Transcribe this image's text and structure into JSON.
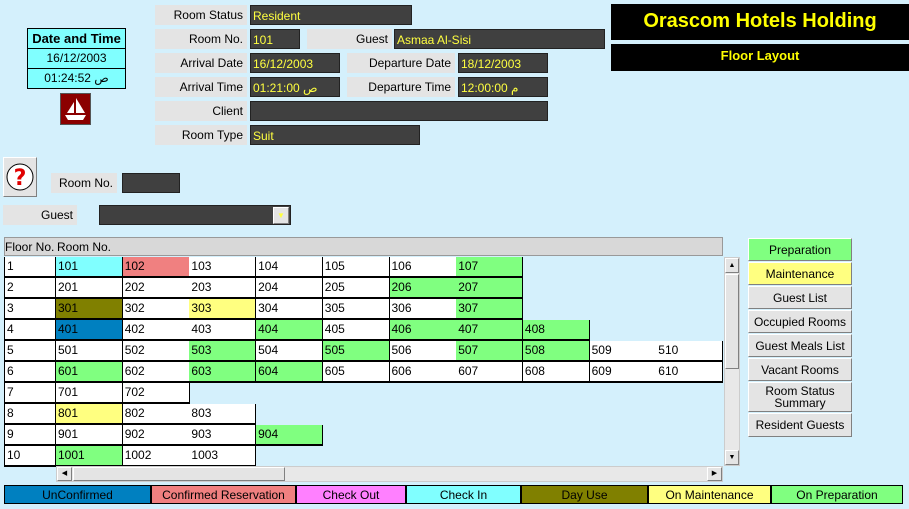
{
  "title": "Orascom Hotels Holding",
  "subtitle": "Floor Layout",
  "datetime": {
    "header": "Date and Time",
    "date": "16/12/2003",
    "time": "01:24:52 ص"
  },
  "details": {
    "room_status_label": "Room Status",
    "room_status": "Resident",
    "room_no_label": "Room No.",
    "room_no": "101",
    "guest_label": "Guest",
    "guest": "Asmaa Al-Sisi",
    "arrival_date_label": "Arrival Date",
    "arrival_date": "16/12/2003",
    "departure_date_label": "Departure Date",
    "departure_date": "18/12/2003",
    "arrival_time_label": "Arrival Time",
    "arrival_time": "01:21:00 ص",
    "departure_time_label": "Departure Time",
    "departure_time": "12:00:00 م",
    "client_label": "Client",
    "client": "",
    "room_type_label": "Room Type",
    "room_type": "Suit"
  },
  "search": {
    "room_no_label": "Room No.",
    "room_no": "",
    "guest_label": "Guest",
    "guest": ""
  },
  "grid": {
    "floor_header": "Floor No.",
    "room_header": "Room No.",
    "rows": [
      {
        "floor": "1",
        "rooms": [
          [
            "101",
            "checkin"
          ],
          [
            "102",
            "confirmed"
          ],
          [
            "103",
            ""
          ],
          [
            "104",
            ""
          ],
          [
            "105",
            ""
          ],
          [
            "106",
            ""
          ],
          [
            "107",
            "prep"
          ]
        ]
      },
      {
        "floor": "2",
        "rooms": [
          [
            "201",
            ""
          ],
          [
            "202",
            ""
          ],
          [
            "203",
            ""
          ],
          [
            "204",
            ""
          ],
          [
            "205",
            ""
          ],
          [
            "206",
            "prep"
          ],
          [
            "207",
            "prep"
          ]
        ]
      },
      {
        "floor": "3",
        "rooms": [
          [
            "301",
            "dayuse"
          ],
          [
            "302",
            ""
          ],
          [
            "303",
            "maint"
          ],
          [
            "304",
            ""
          ],
          [
            "305",
            ""
          ],
          [
            "306",
            ""
          ],
          [
            "307",
            "prep"
          ]
        ]
      },
      {
        "floor": "4",
        "rooms": [
          [
            "401",
            "unconfirmed"
          ],
          [
            "402",
            ""
          ],
          [
            "403",
            ""
          ],
          [
            "404",
            "prep"
          ],
          [
            "405",
            ""
          ],
          [
            "406",
            "prep"
          ],
          [
            "407",
            "prep"
          ],
          [
            "408",
            "prep"
          ]
        ]
      },
      {
        "floor": "5",
        "rooms": [
          [
            "501",
            ""
          ],
          [
            "502",
            ""
          ],
          [
            "503",
            "prep"
          ],
          [
            "504",
            ""
          ],
          [
            "505",
            "prep"
          ],
          [
            "506",
            ""
          ],
          [
            "507",
            "prep"
          ],
          [
            "508",
            "prep"
          ],
          [
            "509",
            ""
          ],
          [
            "510",
            ""
          ]
        ]
      },
      {
        "floor": "6",
        "rooms": [
          [
            "601",
            "prep"
          ],
          [
            "602",
            ""
          ],
          [
            "603",
            "prep"
          ],
          [
            "604",
            "prep"
          ],
          [
            "605",
            ""
          ],
          [
            "606",
            ""
          ],
          [
            "607",
            ""
          ],
          [
            "608",
            ""
          ],
          [
            "609",
            ""
          ],
          [
            "610",
            ""
          ]
        ]
      },
      {
        "floor": "7",
        "rooms": [
          [
            "701",
            ""
          ],
          [
            "702",
            ""
          ]
        ]
      },
      {
        "floor": "8",
        "rooms": [
          [
            "801",
            "maint"
          ],
          [
            "802",
            ""
          ],
          [
            "803",
            ""
          ]
        ]
      },
      {
        "floor": "9",
        "rooms": [
          [
            "901",
            ""
          ],
          [
            "902",
            ""
          ],
          [
            "903",
            ""
          ],
          [
            "904",
            "prep"
          ]
        ]
      },
      {
        "floor": "10",
        "rooms": [
          [
            "1001",
            "prep"
          ],
          [
            "1002",
            ""
          ],
          [
            "1003",
            ""
          ]
        ]
      }
    ]
  },
  "colors": {
    "unconfirmed": "#0080c0",
    "confirmed": "#f08080",
    "checkout": "#ff80ff",
    "checkin": "#80ffff",
    "dayuse": "#808000",
    "maint": "#ffff80",
    "prep": "#80ff80",
    "": "#ffffff"
  },
  "side_buttons": [
    "Preparation",
    "Maintenance",
    "Guest List",
    "Occupied Rooms",
    "Guest Meals List",
    "Vacant Rooms",
    "Room Status Summary",
    "Resident Guests"
  ],
  "legend": [
    {
      "label": "UnConfirmed",
      "key": "unconfirmed"
    },
    {
      "label": "Confirmed Reservation",
      "key": "confirmed"
    },
    {
      "label": "Check Out",
      "key": "checkout"
    },
    {
      "label": "Check In",
      "key": "checkin"
    },
    {
      "label": "Day Use",
      "key": "dayuse"
    },
    {
      "label": "On Maintenance",
      "key": "maint"
    },
    {
      "label": "On Preparation",
      "key": "prep"
    }
  ]
}
